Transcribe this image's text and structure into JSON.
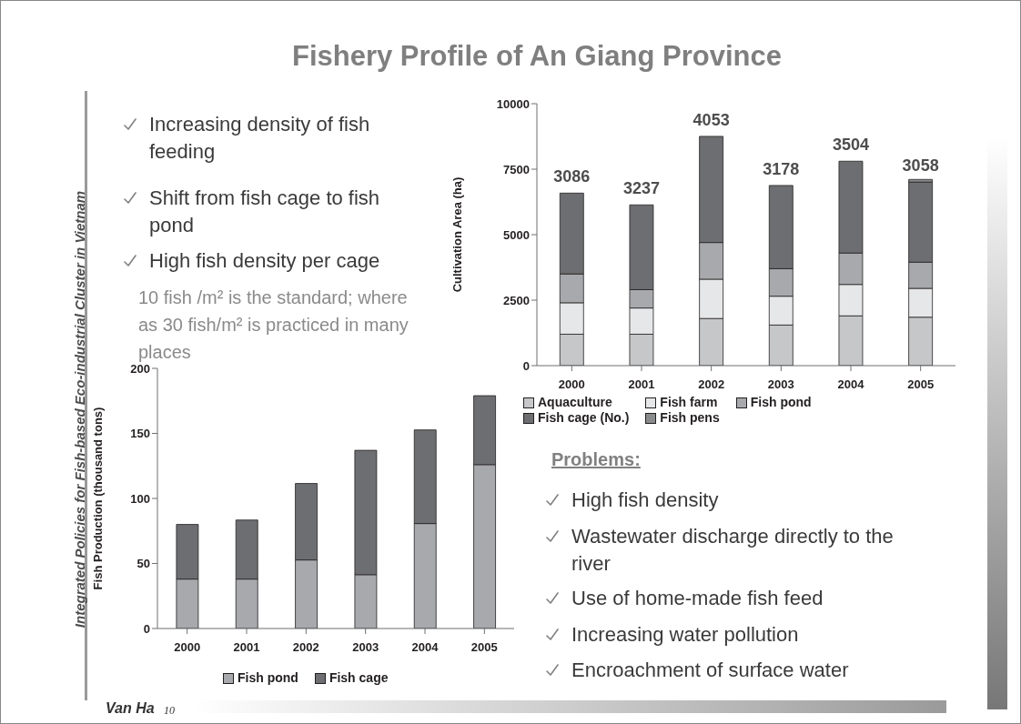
{
  "chart_data": [
    {
      "type": "bar",
      "stacked": true,
      "ylabel": "Cultivation Area (ha)",
      "categories": [
        "2000",
        "2001",
        "2002",
        "2003",
        "2004",
        "2005"
      ],
      "ylim": [
        0,
        10000
      ],
      "yticks": [
        0,
        2500,
        5000,
        7500,
        10000
      ],
      "grid": false,
      "legend": "bottom",
      "series": [
        {
          "name": "Aquaculture",
          "color": "#c6c7c9",
          "values": [
            1200,
            1200,
            1800,
            1550,
            1900,
            1850
          ]
        },
        {
          "name": "Fish farm",
          "color": "#e6e7e8",
          "values": [
            1200,
            1000,
            1500,
            1100,
            1200,
            1100
          ]
        },
        {
          "name": "Fish pond",
          "color": "#a7a9ac",
          "values": [
            1100,
            700,
            1400,
            1050,
            1200,
            1000
          ]
        },
        {
          "name": "Fish cage (No.)",
          "color": "#6d6e71",
          "values": [
            3086,
            3237,
            4053,
            3178,
            3504,
            3058
          ],
          "value_labels": [
            "3086",
            "3237",
            "4053",
            "3178",
            "3504",
            "3058"
          ]
        },
        {
          "name": "Fish pens",
          "color": "#8a8b8d",
          "values": [
            0,
            0,
            0,
            0,
            0,
            100
          ]
        }
      ]
    },
    {
      "type": "bar",
      "stacked": true,
      "ylabel": "Fish Production (thousand tons)",
      "categories": [
        "2000",
        "2001",
        "2002",
        "2003",
        "2004",
        "2005"
      ],
      "ylim": [
        0,
        200
      ],
      "yticks": [
        0,
        50,
        100,
        150,
        200
      ],
      "grid": false,
      "legend": "bottom",
      "series": [
        {
          "name": "Fish pond",
          "color": "#a7a9ac",
          "values": [
            38,
            38,
            52.7,
            41.4,
            80.7,
            126
          ]
        },
        {
          "name": "Fish cage",
          "color": "#6d6e71",
          "values": [
            42,
            45.4,
            58.8,
            95.6,
            72,
            53
          ]
        }
      ]
    },
    {
      "type": "other",
      "title": "Fishery Profile of An Giang Province",
      "annotations": [
        "Increasing density of fish feeding",
        "Shift from fish cage to fish pond",
        "High fish density per cage",
        "10 fish /m² is the standard; where as 30 fish/m² is practiced in many places",
        "Problems:",
        "High fish density",
        "Wastewater discharge directly to the river",
        "Use of home-made fish feed",
        "Increasing water pollution",
        "Encroachment of surface water",
        "Integrated Policies for Fish-based Eco-industrial Cluster in Vietnam",
        "Van Ha",
        "10"
      ]
    }
  ]
}
